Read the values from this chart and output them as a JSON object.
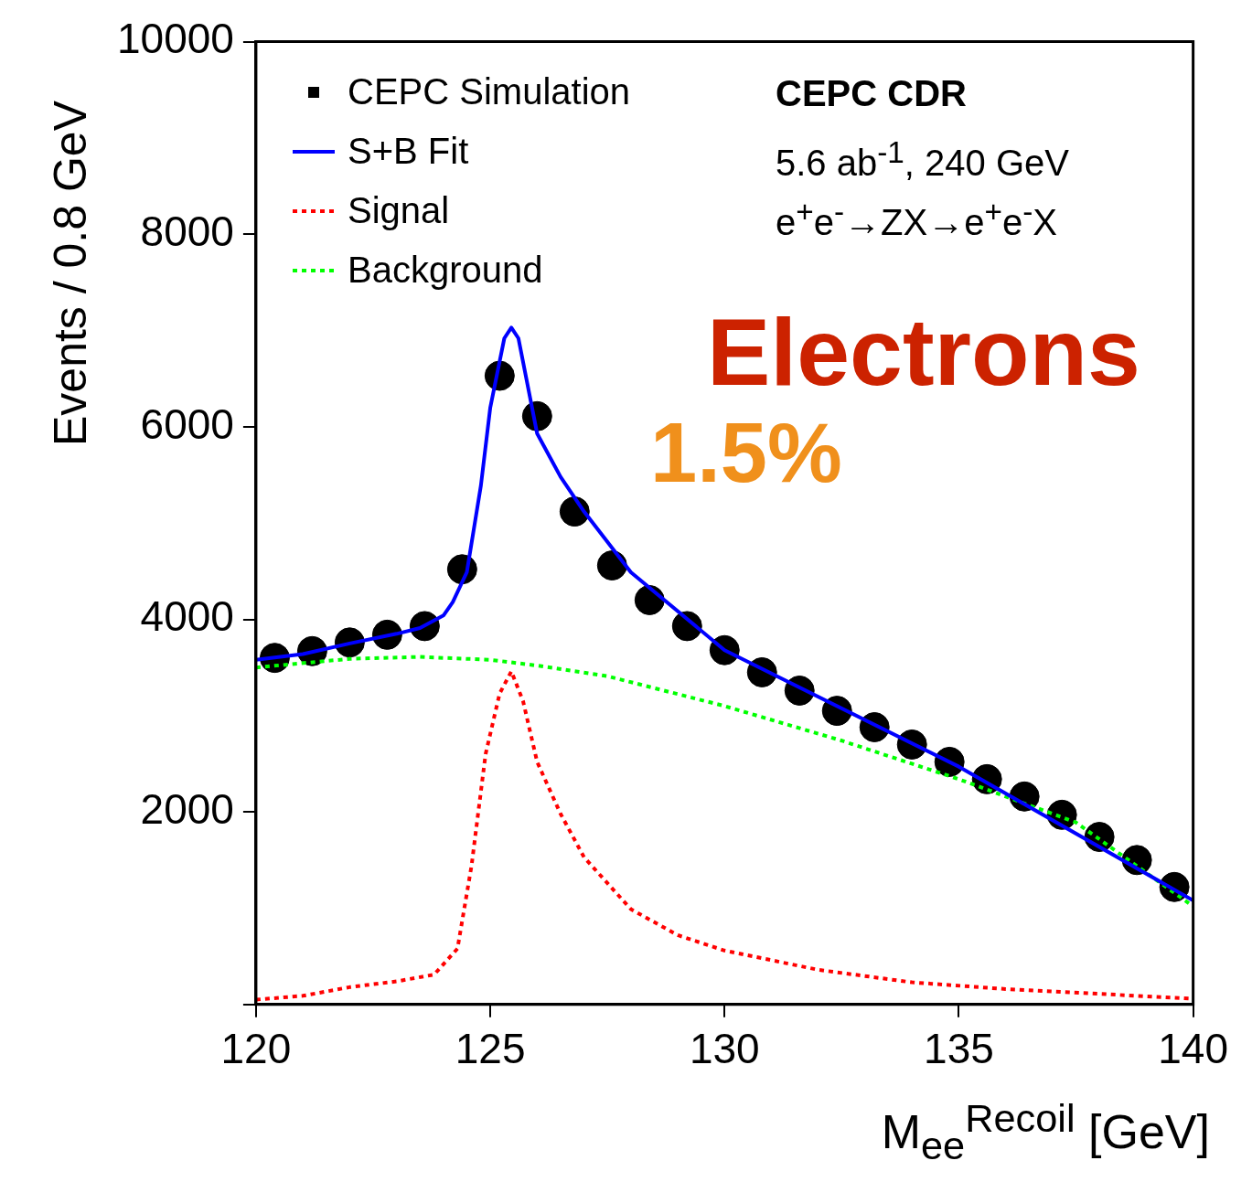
{
  "chart_data": {
    "type": "line",
    "xlabel": "M$_{ee}$$^{Recoil}$ [GeV]",
    "ylabel": "Events / 0.8 GeV",
    "xlim": [
      120,
      140
    ],
    "xticks": [
      120,
      125,
      130,
      135,
      140
    ],
    "ylim": [
      0,
      10000
    ],
    "yticks": [
      {
        "value": 0,
        "label": null
      },
      2000,
      4000,
      6000,
      8000,
      10000
    ],
    "grid": false,
    "legend": "top left",
    "annotations": [
      "CEPC CDR",
      "5.6 ab$^{-1}$, 240 GeV",
      "e$^{+}$e$^{-}$→ZX→e$^{+}$e$^{-}$X",
      "Electrons",
      "1.5%"
    ],
    "series": [
      {
        "name": "CEPC Simulation",
        "type": "scatter",
        "color": "#000000",
        "marker": "circle",
        "x": [
          120.4,
          121.2,
          122,
          122.8,
          123.6,
          124.4,
          125.2,
          126,
          126.8,
          127.6,
          128.4,
          129.2,
          130,
          130.8,
          131.6,
          132.4,
          133.2,
          134,
          134.8,
          135.6,
          136.4,
          137.2,
          138,
          138.8,
          139.6
        ],
        "values": [
          3600,
          3670,
          3760,
          3840,
          3930,
          4520,
          6530,
          6110,
          5120,
          4560,
          4200,
          3930,
          3680,
          3450,
          3260,
          3050,
          2880,
          2700,
          2520,
          2340,
          2160,
          1970,
          1740,
          1500,
          1220
        ]
      },
      {
        "name": "S+B Fit",
        "type": "line",
        "color": "#0000ff",
        "line_style": "solid",
        "marker": "none",
        "x": [
          120,
          121,
          122,
          123,
          123.5,
          124,
          124.2,
          124.5,
          124.8,
          125,
          125.3,
          125.45,
          125.6,
          126,
          126.5,
          127,
          128,
          130,
          135,
          140
        ],
        "values": [
          3580,
          3640,
          3750,
          3850,
          3910,
          4040,
          4180,
          4490,
          5390,
          6200,
          6920,
          7030,
          6920,
          5930,
          5480,
          5120,
          4490,
          3680,
          2470,
          1080
        ]
      },
      {
        "name": "Signal",
        "type": "line",
        "color": "#ff0000",
        "line_style": "dotted",
        "marker": "none",
        "x": [
          120,
          121,
          122,
          123,
          123.8,
          124.3,
          124.6,
          124.9,
          125.2,
          125.45,
          125.7,
          126,
          126.5,
          127,
          128,
          129,
          130,
          132,
          134,
          136,
          138,
          140
        ],
        "values": [
          50,
          90,
          180,
          240,
          310,
          580,
          1440,
          2600,
          3230,
          3460,
          3150,
          2520,
          1980,
          1530,
          990,
          720,
          560,
          360,
          230,
          160,
          110,
          60
        ]
      },
      {
        "name": "Background",
        "type": "line",
        "color": "#00ff00",
        "line_style": "dotted",
        "marker": "none",
        "x": [
          120,
          122,
          123.5,
          125,
          126,
          127.5,
          130,
          132.5,
          135,
          137.5,
          140
        ],
        "values": [
          3500,
          3590,
          3610,
          3580,
          3520,
          3410,
          3100,
          2740,
          2340,
          1890,
          1020
        ]
      }
    ]
  }
}
